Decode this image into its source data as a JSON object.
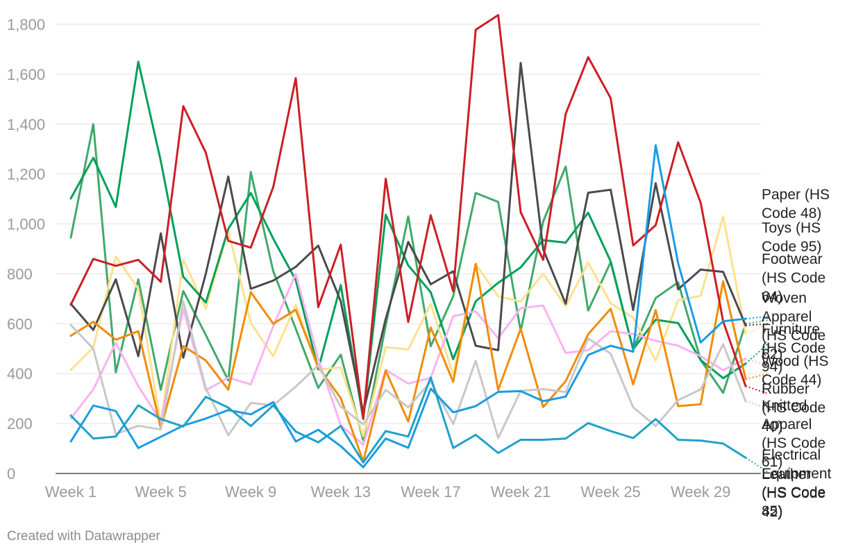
{
  "footer": {
    "credit": "Created with Datawrapper"
  },
  "chart_data": {
    "type": "line",
    "title": "",
    "xlabel": "",
    "ylabel": "",
    "ylim": [
      0,
      1800
    ],
    "yticks": [
      0,
      200,
      400,
      600,
      800,
      1000,
      1200,
      1400,
      1600,
      1800
    ],
    "ytick_labels": [
      "0",
      "200",
      "400",
      "600",
      "800",
      "1,000",
      "1,200",
      "1,400",
      "1,600",
      "1,800"
    ],
    "x": [
      "Week 1",
      "Week 2",
      "Week 3",
      "Week 4",
      "Week 5",
      "Week 6",
      "Week 7",
      "Week 8",
      "Week 9",
      "Week 10",
      "Week 11",
      "Week 12",
      "Week 13",
      "Week 14",
      "Week 15",
      "Week 16",
      "Week 17",
      "Week 18",
      "Week 19",
      "Week 20",
      "Week 21",
      "Week 22",
      "Week 23",
      "Week 24",
      "Week 25",
      "Week 26",
      "Week 27",
      "Week 28",
      "Week 29",
      "Week 30",
      "Week 31",
      "Week 32"
    ],
    "xtick_labels": [
      "Week 1",
      "Week 5",
      "Week 9",
      "Week 13",
      "Week 17",
      "Week 21",
      "Week 25",
      "Week 29"
    ],
    "grid": true,
    "legend": "direct labels at right end of lines",
    "series": [
      {
        "name": "Paper (HS Code 48)",
        "color": "#41a96b",
        "label_lines": [
          "Paper (HS",
          "Code 48)"
        ],
        "values": [
          945,
          1400,
          405,
          778,
          335,
          731,
          555,
          373,
          1208,
          810,
          580,
          343,
          476,
          133,
          593,
          1030,
          510,
          710,
          1124,
          1088,
          570,
          1010,
          1230,
          653,
          847,
          498,
          703,
          766,
          455,
          323,
          600,
          615
        ]
      },
      {
        "name": "Toys (HS Code 95)",
        "color": "#ffe08f",
        "label_lines": [
          "Toys (HS",
          "Code 95)"
        ],
        "values": [
          415,
          505,
          870,
          740,
          195,
          857,
          660,
          975,
          603,
          470,
          677,
          417,
          425,
          150,
          506,
          497,
          680,
          395,
          839,
          710,
          689,
          800,
          670,
          845,
          682,
          625,
          453,
          694,
          712,
          1030,
          560,
          600
        ]
      },
      {
        "name": "Footwear (HS Code 64)",
        "color": "#00a05a",
        "label_lines": [
          "Footwear",
          "(HS Code",
          "64)"
        ],
        "values": [
          1102,
          1265,
          1068,
          1650,
          1252,
          788,
          685,
          980,
          1124,
          941,
          775,
          418,
          755,
          218,
          1037,
          834,
          726,
          458,
          690,
          764,
          826,
          935,
          925,
          1045,
          850,
          498,
          616,
          603,
          455,
          382,
          440,
          520
        ]
      },
      {
        "name": "Woven Apparel (HS Code 62)",
        "color": "#fcb1f4",
        "label_lines": [
          "Woven",
          "Apparel",
          "(HS Code",
          "62)"
        ],
        "values": [
          220,
          337,
          523,
          350,
          210,
          660,
          333,
          384,
          357,
          590,
          800,
          460,
          193,
          115,
          415,
          360,
          383,
          630,
          650,
          542,
          663,
          673,
          483,
          494,
          570,
          559,
          532,
          512,
          470,
          414,
          460,
          430
        ]
      },
      {
        "name": "Furniture (HS Code 94)",
        "color": "#4a4a4a",
        "label_lines": [
          "Furniture",
          "(HS Code",
          "94)"
        ],
        "values": [
          680,
          575,
          778,
          470,
          962,
          464,
          800,
          1190,
          740,
          773,
          828,
          913,
          690,
          245,
          620,
          928,
          758,
          810,
          512,
          494,
          1645,
          898,
          680,
          1125,
          1137,
          655,
          1163,
          738,
          817,
          808,
          593,
          600
        ]
      },
      {
        "name": "Wood (HS Code 44)",
        "color": "#f18c08",
        "label_lines": [
          "Wood (HS",
          "Code 44)"
        ],
        "values": [
          552,
          608,
          536,
          570,
          182,
          510,
          453,
          336,
          727,
          600,
          656,
          426,
          302,
          48,
          412,
          208,
          585,
          367,
          840,
          335,
          580,
          266,
          370,
          558,
          660,
          357,
          655,
          270,
          277,
          770,
          378,
          400
        ]
      },
      {
        "name": "Rubber (HS Code 40)",
        "color": "#cc1e25",
        "label_lines": [
          "Rubber",
          "(HS Code",
          "40)"
        ],
        "values": [
          676,
          860,
          832,
          856,
          768,
          1472,
          1286,
          932,
          905,
          1148,
          1584,
          667,
          917,
          220,
          1181,
          607,
          1035,
          730,
          1778,
          1837,
          1047,
          856,
          1441,
          1668,
          1504,
          914,
          995,
          1327,
          1085,
          610,
          350,
          320
        ]
      },
      {
        "name": "Knitted Apparel (HS Code 61)",
        "color": "#c8c8c8",
        "label_lines": [
          "Knitted",
          "Apparel",
          "(HS Code",
          "61)"
        ],
        "values": [
          595,
          500,
          158,
          191,
          176,
          690,
          343,
          153,
          283,
          273,
          348,
          434,
          268,
          197,
          335,
          265,
          368,
          198,
          452,
          142,
          331,
          338,
          326,
          541,
          480,
          265,
          190,
          294,
          337,
          518,
          290,
          260
        ]
      },
      {
        "name": "Electrical Equipment (HS Code 85)",
        "color": "#1a9be5",
        "label_lines": [
          "Electrical",
          "Equipment",
          "(HS Code",
          "85)"
        ],
        "values": [
          128,
          272,
          250,
          102,
          147,
          192,
          220,
          254,
          237,
          286,
          128,
          175,
          110,
          25,
          140,
          103,
          340,
          245,
          270,
          327,
          330,
          290,
          308,
          475,
          512,
          488,
          1315,
          842,
          525,
          610,
          620,
          630
        ]
      },
      {
        "name": "Leather (HS Code 42)",
        "color": "#1fa1c9",
        "label_lines": [
          "Leather",
          "(HS Code",
          "42)"
        ],
        "values": [
          232,
          140,
          148,
          273,
          218,
          188,
          307,
          264,
          190,
          273,
          168,
          125,
          190,
          44,
          170,
          148,
          385,
          102,
          155,
          82,
          135,
          135,
          140,
          202,
          170,
          142,
          218,
          135,
          132,
          120,
          63,
          5
        ]
      }
    ]
  }
}
